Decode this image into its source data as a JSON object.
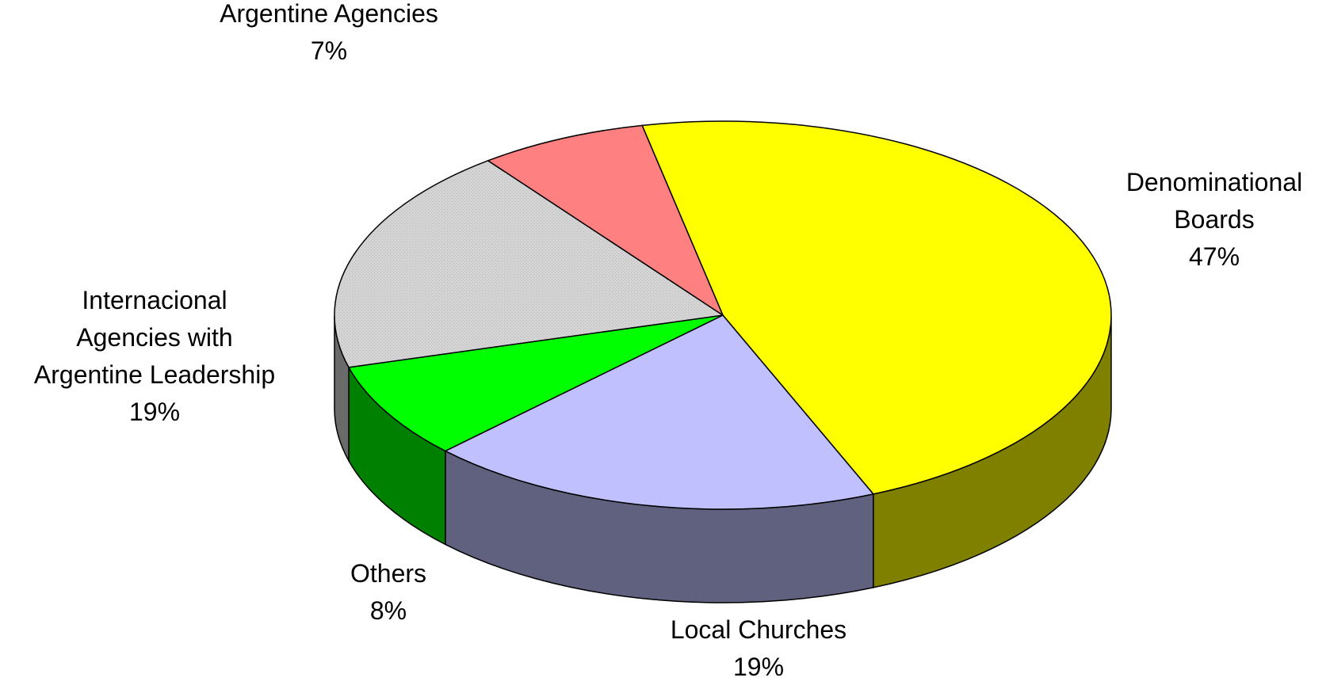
{
  "chart_data": {
    "type": "pie",
    "title": "",
    "three_d": true,
    "slices": [
      {
        "label_lines": [
          "Denominational",
          "Boards"
        ],
        "value": 47,
        "value_label": "47%",
        "color": "#FFFF00",
        "side_color": "#808000"
      },
      {
        "label_lines": [
          "Local Churches"
        ],
        "value": 19,
        "value_label": "19%",
        "color": "#C0C0FF",
        "side_color": "#60607F"
      },
      {
        "label_lines": [
          "Others"
        ],
        "value": 8,
        "value_label": "8%",
        "color": "#00FF00",
        "side_color": "#008000"
      },
      {
        "label_lines": [
          "Internacional",
          "Agencies with",
          "Argentine Leadership"
        ],
        "value": 19,
        "value_label": "19%",
        "color": "#D4D4D4",
        "side_color": "#6A6A6A"
      },
      {
        "label_lines": [
          "Argentine Agencies"
        ],
        "value": 7,
        "value_label": "7%",
        "color": "#FF8080",
        "side_color": "#804040"
      }
    ]
  }
}
